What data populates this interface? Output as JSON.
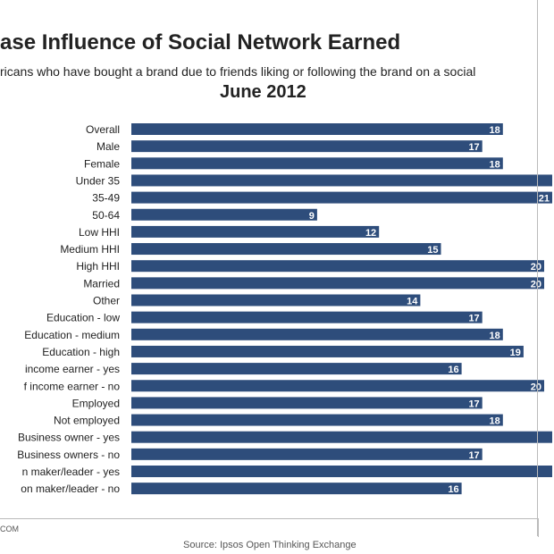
{
  "chart_data": {
    "type": "bar",
    "orientation": "horizontal",
    "title": "ase Influence of Social Network Earned",
    "subtitle": "ricans who have bought a brand due to friends liking or following the brand on a social",
    "date": "June 2012",
    "categories": [
      "Overall",
      "Male",
      "Female",
      "Under 35",
      "35-49",
      "50-64",
      "Low HHI",
      "Medium HHI",
      "High HHI",
      "Married",
      "Other",
      "Education - low",
      "Education - medium",
      "Education - high",
      "income earner - yes",
      "f income earner - no",
      "Employed",
      "Not employed",
      "Business owner - yes",
      "Business owners - no",
      "n maker/leader - yes",
      "on maker/leader - no"
    ],
    "values": [
      18,
      17,
      18,
      22,
      21,
      9,
      12,
      15,
      20,
      20,
      14,
      17,
      18,
      19,
      16,
      20,
      17,
      18,
      23,
      17,
      23,
      16
    ],
    "value_labels": [
      "18",
      "17",
      "18",
      "",
      "21",
      "9",
      "12",
      "15",
      "20",
      "20",
      "14",
      "17",
      "18",
      "19",
      "16",
      "20",
      "17",
      "18",
      "",
      "17",
      "",
      "16"
    ],
    "bar_color": "#2e4d7b",
    "grid": false
  },
  "footer": {
    "left": "COM",
    "source": "Source: Ipsos Open Thinking Exchange"
  }
}
